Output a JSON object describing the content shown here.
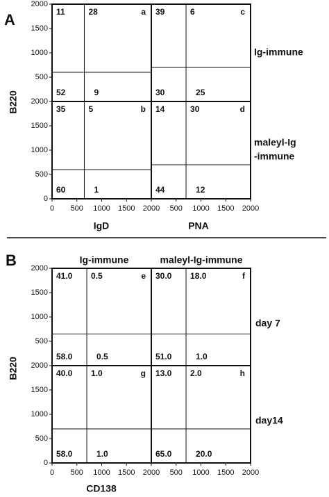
{
  "figure": {
    "sections": [
      {
        "label": "A",
        "ylabel": "B220",
        "xlabels": [
          "IgD",
          "PNA"
        ],
        "row_labels": [
          "Ig-immune",
          "maleyl-Ig",
          "-immune"
        ]
      },
      {
        "label": "B",
        "ylabel": "B220",
        "xlabel": "CD138",
        "column_labels": [
          "Ig-immune",
          "maleyl-Ig-immune"
        ],
        "row_labels": [
          "day 7",
          "day14"
        ]
      }
    ]
  },
  "chart_data": [
    {
      "type": "quadrant",
      "letter": "a",
      "values": [
        11,
        28,
        52,
        9
      ],
      "xgate": 650,
      "ygate": 600,
      "xlim": [
        0,
        2000
      ],
      "ylim": [
        0,
        2000
      ],
      "yticks": [
        500,
        1000,
        1500,
        2000
      ]
    },
    {
      "type": "quadrant",
      "letter": "b",
      "values": [
        35,
        5,
        60,
        1
      ],
      "xgate": 650,
      "ygate": 600,
      "xlim": [
        0,
        2000
      ],
      "ylim": [
        0,
        2000
      ],
      "yticks": [
        0,
        500,
        1000,
        1500,
        2000
      ],
      "xticks": [
        0,
        500,
        1000,
        1500,
        2000
      ]
    },
    {
      "type": "quadrant",
      "letter": "c",
      "values": [
        39,
        6,
        30,
        25
      ],
      "xgate": 700,
      "ygate": 700,
      "xlim": [
        0,
        2000
      ],
      "ylim": [
        0,
        2000
      ]
    },
    {
      "type": "quadrant",
      "letter": "d",
      "values": [
        14,
        30,
        44,
        12
      ],
      "xgate": 700,
      "ygate": 700,
      "xlim": [
        0,
        2000
      ],
      "ylim": [
        0,
        2000
      ],
      "xticks": [
        500,
        1000,
        1500,
        2000
      ]
    },
    {
      "type": "quadrant",
      "letter": "e",
      "values": [
        41,
        0.5,
        58,
        0.5
      ],
      "value_labels": [
        "41.0",
        "0.5",
        "58.0",
        "0.5"
      ],
      "xgate": 700,
      "ygate": 650,
      "xlim": [
        0,
        2000
      ],
      "ylim": [
        0,
        2000
      ],
      "yticks": [
        500,
        1000,
        1500,
        2000
      ]
    },
    {
      "type": "quadrant",
      "letter": "f",
      "values": [
        30,
        18,
        51,
        1
      ],
      "value_labels": [
        "30.0",
        "18.0",
        "51.0",
        "1.0"
      ],
      "xgate": 700,
      "ygate": 650,
      "xlim": [
        0,
        2000
      ],
      "ylim": [
        0,
        2000
      ]
    },
    {
      "type": "quadrant",
      "letter": "g",
      "values": [
        40,
        1,
        58,
        1
      ],
      "value_labels": [
        "40.0",
        "1.0",
        "58.0",
        "1.0"
      ],
      "xgate": 700,
      "ygate": 700,
      "xlim": [
        0,
        2000
      ],
      "ylim": [
        0,
        2000
      ],
      "yticks": [
        0,
        500,
        1000,
        1500,
        2000
      ],
      "xticks": [
        0,
        500,
        1000,
        1500,
        2000
      ]
    },
    {
      "type": "quadrant",
      "letter": "h",
      "values": [
        13,
        2,
        65,
        20
      ],
      "value_labels": [
        "13.0",
        "2.0",
        "65.0",
        "20.0"
      ],
      "xgate": 700,
      "ygate": 700,
      "xlim": [
        0,
        2000
      ],
      "ylim": [
        0,
        2000
      ],
      "xticks": [
        500,
        1000,
        1500,
        2000
      ]
    }
  ]
}
